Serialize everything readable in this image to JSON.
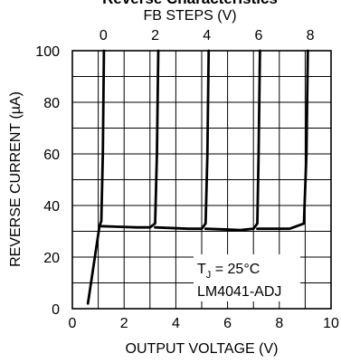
{
  "chart_data": {
    "type": "line",
    "title": "Reverse Characteristics",
    "top_axis_label": "FB STEPS (V)",
    "top_ticks": [
      "0",
      "2",
      "4",
      "6",
      "8"
    ],
    "xlabel": "OUTPUT VOLTAGE (V)",
    "ylabel": "REVERSE CURRENT (µA)",
    "xlim": [
      0,
      10
    ],
    "ylim": [
      0,
      100
    ],
    "x_ticks": [
      "0",
      "2",
      "4",
      "6",
      "8",
      "10"
    ],
    "y_ticks": [
      "0",
      "20",
      "40",
      "60",
      "80",
      "100"
    ],
    "grid": true,
    "annotation": {
      "line1_main": "T",
      "line1_sub": "J",
      "line1_rest": " = 25°C",
      "line2": "LM4041-ADJ"
    },
    "series": [
      {
        "fb_step": "0",
        "points": [
          [
            0.6,
            2
          ],
          [
            1.05,
            32
          ],
          [
            1.12,
            34
          ],
          [
            1.18,
            60
          ],
          [
            1.22,
            100
          ]
        ]
      },
      {
        "fb_step": "2",
        "points": [
          [
            1.05,
            32
          ],
          [
            2.5,
            31.5
          ],
          [
            3.0,
            31.5
          ],
          [
            3.2,
            33
          ],
          [
            3.27,
            60
          ],
          [
            3.32,
            100
          ]
        ]
      },
      {
        "fb_step": "4",
        "points": [
          [
            3.2,
            31.5
          ],
          [
            4.5,
            31
          ],
          [
            5.0,
            31
          ],
          [
            5.15,
            33
          ],
          [
            5.22,
            60
          ],
          [
            5.27,
            100
          ]
        ]
      },
      {
        "fb_step": "6",
        "points": [
          [
            5.15,
            31
          ],
          [
            6.5,
            30.5
          ],
          [
            7.0,
            31
          ],
          [
            7.15,
            33
          ],
          [
            7.2,
            60
          ],
          [
            7.25,
            100
          ]
        ]
      },
      {
        "fb_step": "8",
        "points": [
          [
            7.15,
            31
          ],
          [
            8.4,
            31
          ],
          [
            8.95,
            33
          ],
          [
            9.05,
            60
          ],
          [
            9.1,
            100
          ]
        ]
      }
    ]
  }
}
